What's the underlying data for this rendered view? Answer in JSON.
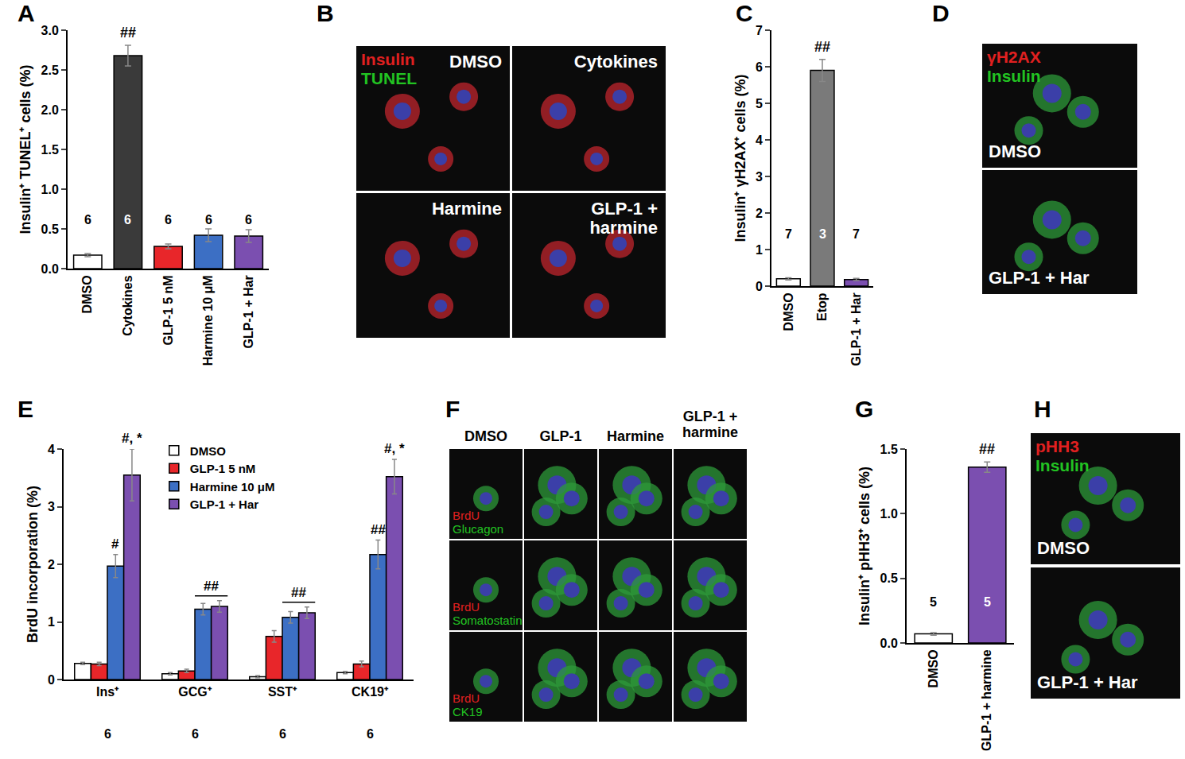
{
  "chart_data": [
    {
      "type": "bar",
      "title": "A",
      "categories": [
        "DMSO",
        "Cytokines",
        "GLP-1 5 nM",
        "Harmine 10 μM",
        "GLP-1 + Har"
      ],
      "values": [
        0.17,
        2.68,
        0.28,
        0.42,
        0.41
      ],
      "errors": [
        0.02,
        0.13,
        0.03,
        0.08,
        0.08
      ],
      "colors": [
        "#ffffff",
        "#3a3a3a",
        "#e8262a",
        "#3c6fc4",
        "#7b4fb0"
      ],
      "n": [
        6,
        6,
        6,
        6,
        6
      ],
      "significance": [
        null,
        "##",
        null,
        null,
        null
      ],
      "y_label": "Insulin⁺ TUNEL⁺ cells (%)",
      "ylim": [
        0,
        3
      ],
      "yticks": [
        {
          "value": 0,
          "label": "0.0"
        },
        {
          "value": 0.5,
          "label": "0.5"
        },
        {
          "value": 1,
          "label": "1.0"
        },
        {
          "value": 1.5,
          "label": "1.5"
        },
        {
          "value": 2,
          "label": "2.0"
        },
        {
          "value": 2.5,
          "label": "2.5"
        },
        {
          "value": 3,
          "label": "3.0"
        }
      ],
      "grid": false
    },
    {
      "type": "bar",
      "title": "C",
      "categories": [
        "DMSO",
        "Etop",
        "GLP-1 + Har"
      ],
      "values": [
        0.2,
        5.9,
        0.18
      ],
      "errors": [
        0.03,
        0.3,
        0.03
      ],
      "colors": [
        "#ffffff",
        "#7a7a7a",
        "#7b4fb0"
      ],
      "n": [
        7,
        3,
        7
      ],
      "significance": [
        null,
        "##",
        null
      ],
      "y_label": "Insulin⁺ γH2AX⁺ cells (%)",
      "ylim": [
        0,
        7
      ],
      "yticks": [
        0,
        1,
        2,
        3,
        4,
        5,
        6,
        7
      ],
      "grid": false
    },
    {
      "type": "bar",
      "title": "E",
      "categories": [
        "Ins⁺",
        "GCG⁺",
        "SST⁺",
        "CK19⁺"
      ],
      "n": [
        6,
        6,
        6,
        6
      ],
      "series": [
        {
          "name": "DMSO",
          "color": "#ffffff",
          "values": [
            0.28,
            0.1,
            0.05,
            0.12
          ],
          "errors": [
            0.02,
            0.02,
            0.02,
            0.02
          ],
          "significance": [
            null,
            null,
            null,
            null
          ]
        },
        {
          "name": "GLP-1 5 nM",
          "color": "#e8262a",
          "values": [
            0.27,
            0.15,
            0.75,
            0.27
          ],
          "errors": [
            0.03,
            0.03,
            0.1,
            0.05
          ],
          "significance": [
            null,
            null,
            null,
            null
          ]
        },
        {
          "name": "Harmine 10 μM",
          "color": "#3c6fc4",
          "values": [
            1.97,
            1.22,
            1.08,
            2.17
          ],
          "errors": [
            0.2,
            0.1,
            0.1,
            0.25
          ],
          "significance": [
            "#",
            null,
            null,
            "##"
          ]
        },
        {
          "name": "GLP-1 + Har",
          "color": "#7b4fb0",
          "values": [
            3.55,
            1.27,
            1.16,
            3.52
          ],
          "errors": [
            0.45,
            0.1,
            0.1,
            0.3
          ],
          "significance": [
            "#, *",
            null,
            null,
            "#, *"
          ]
        }
      ],
      "brackets": [
        {
          "category": "GCG⁺",
          "series": [
            "Harmine 10 μM",
            "GLP-1 + Har"
          ],
          "text": "##"
        },
        {
          "category": "SST⁺",
          "series": [
            "Harmine 10 μM",
            "GLP-1 + Har"
          ],
          "text": "##"
        }
      ],
      "y_label": "BrdU incorporation (%)",
      "ylim": [
        0,
        4
      ],
      "yticks": [
        0,
        1,
        2,
        3,
        4
      ],
      "legend": "top",
      "grid": false
    },
    {
      "type": "bar",
      "title": "G",
      "categories": [
        "DMSO",
        "GLP-1 + harmine"
      ],
      "values": [
        0.07,
        1.36
      ],
      "errors": [
        0.01,
        0.04
      ],
      "colors": [
        "#ffffff",
        "#7b4fb0"
      ],
      "n": [
        5,
        5
      ],
      "significance": [
        null,
        "##"
      ],
      "y_label": "Insulin⁺ pHH3⁺ cells (%)",
      "ylim": [
        0,
        1.5
      ],
      "yticks": [
        {
          "value": 0,
          "label": "0.0"
        },
        {
          "value": 0.5,
          "label": "0.5"
        },
        {
          "value": 1,
          "label": "1.0"
        },
        {
          "value": 1.5,
          "label": "1.5"
        }
      ],
      "grid": false
    }
  ],
  "image_panels": [
    {
      "title": "B",
      "legend": [
        {
          "text": "Insulin",
          "color": "#e02020"
        },
        {
          "text": "TUNEL",
          "color": "#22c322"
        }
      ],
      "tiles": [
        "DMSO",
        "Cytokines",
        "Harmine",
        "GLP-1 + harmine"
      ]
    },
    {
      "title": "D",
      "legend": [
        {
          "text": "γH2AX",
          "color": "#e02020"
        },
        {
          "text": "Insulin",
          "color": "#22c322"
        }
      ],
      "tiles": [
        "DMSO",
        "GLP-1 + Har"
      ]
    },
    {
      "title": "F",
      "columns": [
        "DMSO",
        "GLP-1",
        "Harmine",
        "GLP-1 + harmine"
      ],
      "rows": [
        [
          {
            "text": "BrdU",
            "color": "#e02020"
          },
          {
            "text": "Glucagon",
            "color": "#22c322"
          }
        ],
        [
          {
            "text": "BrdU",
            "color": "#e02020"
          },
          {
            "text": "Somatostatin",
            "color": "#22c322"
          }
        ],
        [
          {
            "text": "BrdU",
            "color": "#e02020"
          },
          {
            "text": "CK19",
            "color": "#22c322"
          }
        ]
      ]
    },
    {
      "title": "H",
      "legend": [
        {
          "text": "pHH3",
          "color": "#e02020"
        },
        {
          "text": "Insulin",
          "color": "#22c322"
        }
      ],
      "tiles": [
        "DMSO",
        "GLP-1 + Har"
      ]
    }
  ]
}
